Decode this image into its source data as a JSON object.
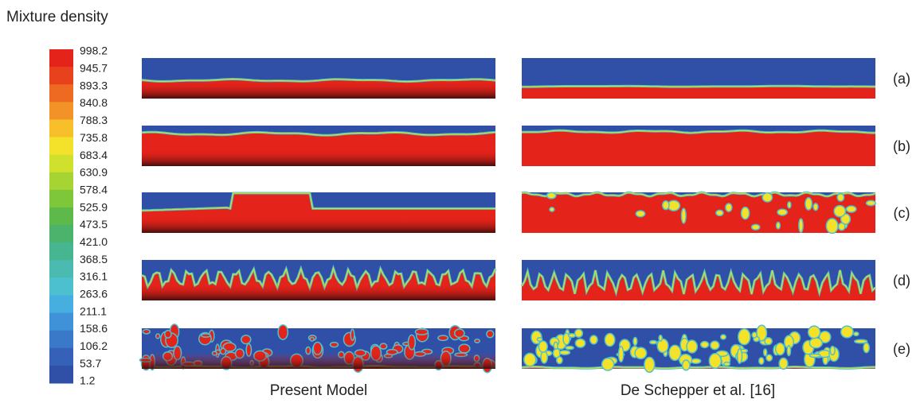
{
  "title": "Mixture density",
  "colorbar": {
    "labels": [
      "998.2",
      "945.7",
      "893.3",
      "840.8",
      "788.3",
      "735.8",
      "683.4",
      "630.9",
      "578.4",
      "525.9",
      "473.5",
      "421.0",
      "368.5",
      "316.1",
      "263.6",
      "211.1",
      "158.6",
      "106.2",
      "53.7",
      "1.2"
    ]
  },
  "columns": [
    "Present Model",
    "De Schepper et al. [16]"
  ],
  "rows": [
    "(a)",
    "(b)",
    "(c)",
    "(d)",
    "(e)"
  ]
}
